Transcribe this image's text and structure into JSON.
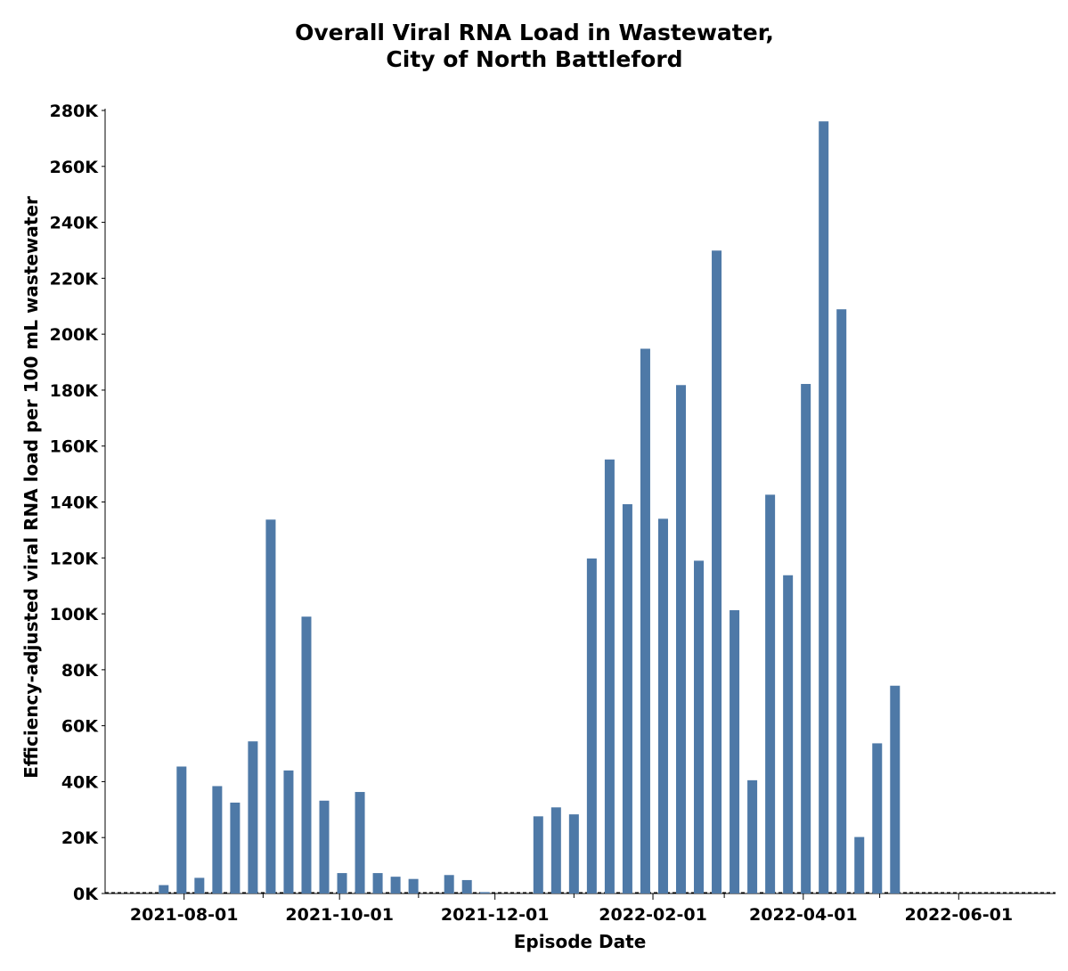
{
  "chart_data": {
    "type": "bar",
    "title_lines": [
      "Overall Viral RNA Load in Wastewater,",
      "City of North Battleford"
    ],
    "xlabel": "Episode Date",
    "ylabel": "Efficiency-adjusted viral RNA load per 100 mL wastewater",
    "bar_color": "#4e79a7",
    "x_range": [
      "2021-07-01",
      "2022-07-09"
    ],
    "ylim": [
      0,
      280000
    ],
    "y_ticks": [
      0,
      20000,
      40000,
      60000,
      80000,
      100000,
      120000,
      140000,
      160000,
      180000,
      200000,
      220000,
      240000,
      260000,
      280000
    ],
    "y_tick_labels": [
      "0K",
      "20K",
      "40K",
      "60K",
      "80K",
      "100K",
      "120K",
      "140K",
      "160K",
      "180K",
      "200K",
      "220K",
      "240K",
      "260K",
      "280K"
    ],
    "x_ticks": [
      "2021-08-01",
      "2021-10-01",
      "2021-12-01",
      "2022-02-01",
      "2022-04-01",
      "2022-06-01"
    ],
    "x_tick_labels": [
      "2021-08-01",
      "2021-10-01",
      "2021-12-01",
      "2022-02-01",
      "2022-04-01",
      "2022-06-01"
    ],
    "x_minor_ticks": [
      "2021-09-01",
      "2021-11-01",
      "2022-01-01",
      "2022-03-01",
      "2022-05-01"
    ],
    "grid": false,
    "zero_line": true,
    "bars": [
      {
        "date": "2021-07-24",
        "value": 3000
      },
      {
        "date": "2021-07-31",
        "value": 45400
      },
      {
        "date": "2021-08-07",
        "value": 5600
      },
      {
        "date": "2021-08-14",
        "value": 38400
      },
      {
        "date": "2021-08-21",
        "value": 32500
      },
      {
        "date": "2021-08-28",
        "value": 54400
      },
      {
        "date": "2021-09-04",
        "value": 133700
      },
      {
        "date": "2021-09-11",
        "value": 44000
      },
      {
        "date": "2021-09-18",
        "value": 99000
      },
      {
        "date": "2021-09-25",
        "value": 33200
      },
      {
        "date": "2021-10-02",
        "value": 7300
      },
      {
        "date": "2021-10-09",
        "value": 36300
      },
      {
        "date": "2021-10-16",
        "value": 7300
      },
      {
        "date": "2021-10-23",
        "value": 6000
      },
      {
        "date": "2021-10-30",
        "value": 5200
      },
      {
        "date": "2021-11-13",
        "value": 6600
      },
      {
        "date": "2021-11-20",
        "value": 4800
      },
      {
        "date": "2021-11-27",
        "value": 500
      },
      {
        "date": "2021-12-18",
        "value": 27600
      },
      {
        "date": "2021-12-25",
        "value": 30800
      },
      {
        "date": "2022-01-01",
        "value": 28300
      },
      {
        "date": "2022-01-08",
        "value": 119800
      },
      {
        "date": "2022-01-15",
        "value": 155200
      },
      {
        "date": "2022-01-22",
        "value": 139200
      },
      {
        "date": "2022-01-29",
        "value": 194800
      },
      {
        "date": "2022-02-05",
        "value": 134000
      },
      {
        "date": "2022-02-12",
        "value": 181800
      },
      {
        "date": "2022-02-19",
        "value": 119000
      },
      {
        "date": "2022-02-26",
        "value": 229900
      },
      {
        "date": "2022-03-05",
        "value": 101300
      },
      {
        "date": "2022-03-12",
        "value": 40500
      },
      {
        "date": "2022-03-19",
        "value": 142600
      },
      {
        "date": "2022-03-26",
        "value": 113800
      },
      {
        "date": "2022-04-02",
        "value": 182200
      },
      {
        "date": "2022-04-09",
        "value": 276100
      },
      {
        "date": "2022-04-16",
        "value": 208900
      },
      {
        "date": "2022-04-23",
        "value": 20200
      },
      {
        "date": "2022-04-30",
        "value": 53700
      },
      {
        "date": "2022-05-07",
        "value": 74300
      }
    ]
  }
}
